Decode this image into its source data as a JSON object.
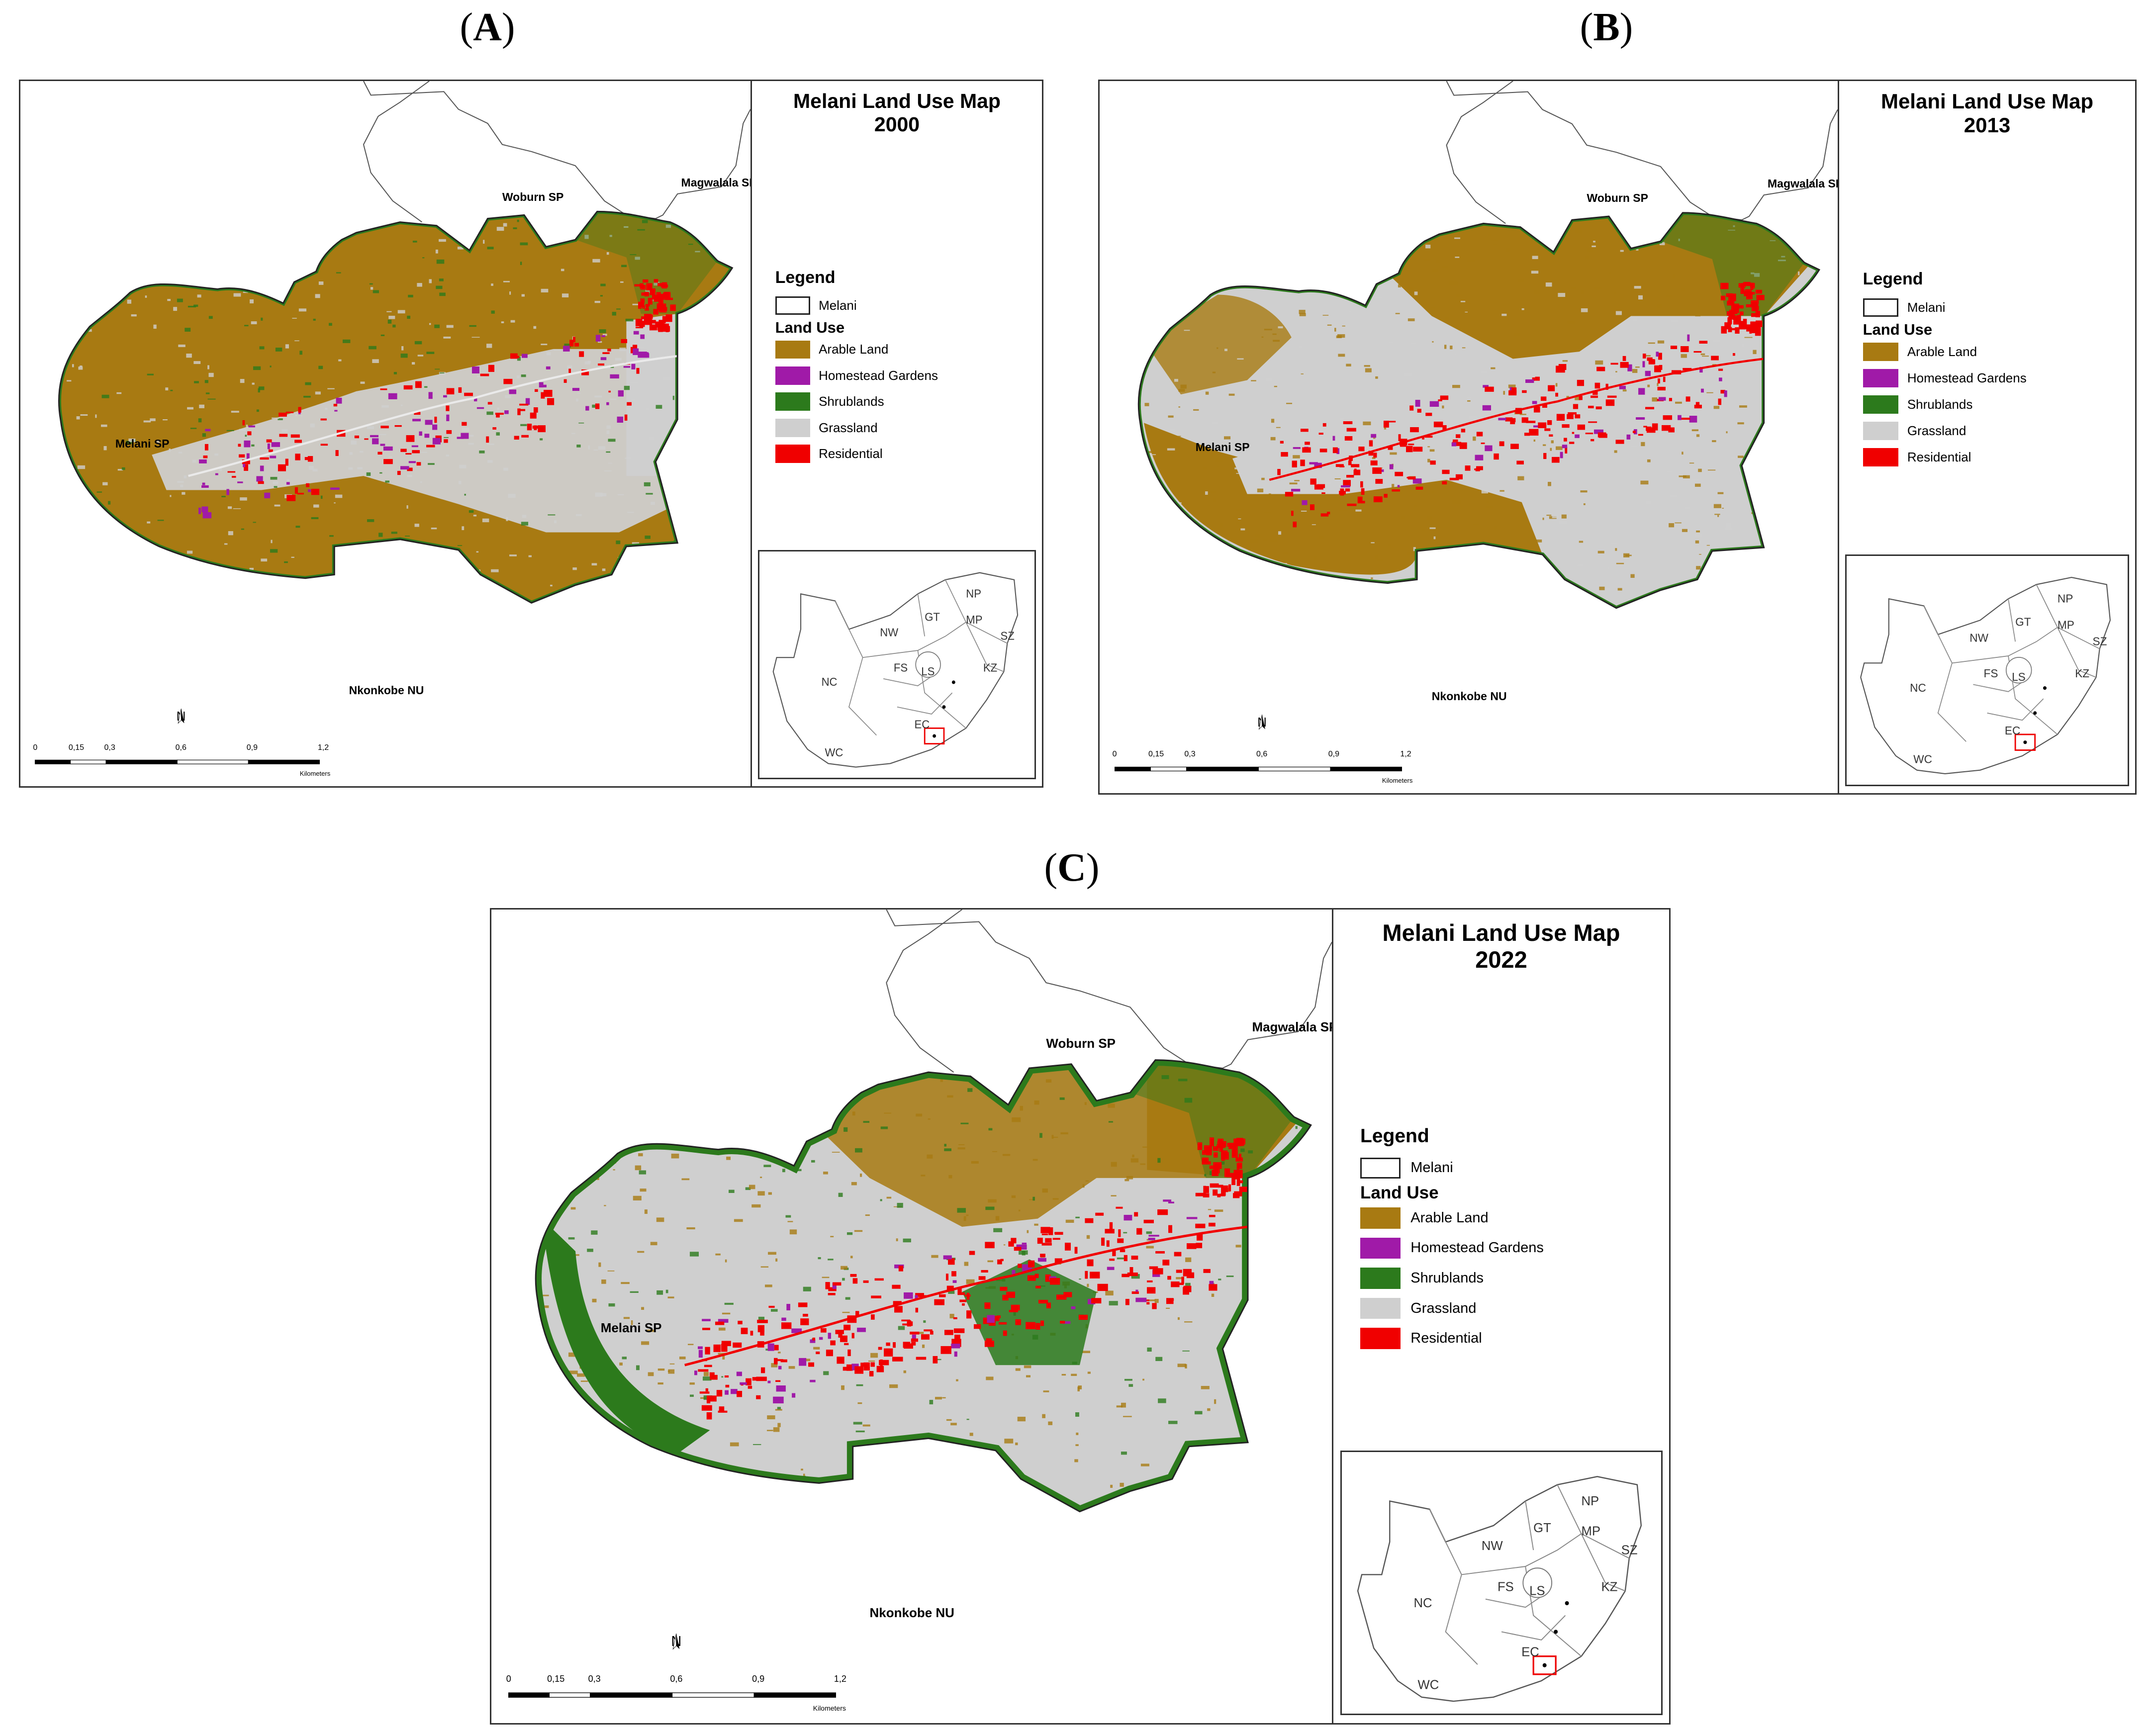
{
  "colors": {
    "arable": "#a87a12",
    "homestead": "#a01aa8",
    "shrub": "#2c7a1c",
    "grass": "#cfcfcf",
    "residential": "#f00000",
    "boundary": "#222222"
  },
  "panels": [
    {
      "letter": "A",
      "title_line1": "Melani Land Use Map",
      "title_line2": "2000",
      "places": {
        "woburn": "Woburn SP",
        "magwalala": "Magwalala SP",
        "melani": "Melani SP",
        "nkonkobe": "Nkonkobe NU"
      },
      "scale_ticks": [
        "0",
        "0,15",
        "0,3",
        "0,6",
        "0,9",
        "1,2"
      ],
      "scale_unit": "Kilometers",
      "north": "N",
      "dominant": "arable"
    },
    {
      "letter": "B",
      "title_line1": "Melani Land Use Map",
      "title_line2": "2013",
      "places": {
        "woburn": "Woburn SP",
        "magwalala": "Magwalala SP",
        "melani": "Melani SP",
        "nkonkobe": "Nkonkobe NU"
      },
      "scale_ticks": [
        "0",
        "0,15",
        "0,3",
        "0,6",
        "0,9",
        "1,2"
      ],
      "scale_unit": "Kilometers",
      "north": "N",
      "dominant": "mixed"
    },
    {
      "letter": "C",
      "title_line1": "Melani Land Use Map",
      "title_line2": "2022",
      "places": {
        "woburn": "Woburn SP",
        "magwalala": "Magwalala SP",
        "melani": "Melani SP",
        "nkonkobe": "Nkonkobe NU"
      },
      "scale_ticks": [
        "0",
        "0,15",
        "0,3",
        "0,6",
        "0,9",
        "1,2"
      ],
      "scale_unit": "Kilometers",
      "north": "N",
      "dominant": "grass"
    }
  ],
  "legend": {
    "heading": "Legend",
    "boundary_label": "Melani",
    "land_use_heading": "Land Use",
    "items": [
      {
        "label": "Arable Land",
        "key": "arable"
      },
      {
        "label": "Homestead Gardens",
        "key": "homestead"
      },
      {
        "label": "Shrublands",
        "key": "shrub"
      },
      {
        "label": "Grassland",
        "key": "grass"
      },
      {
        "label": "Residential",
        "key": "residential"
      }
    ]
  },
  "inset_labels": {
    "np": "NP",
    "gt": "GT",
    "mp": "MP",
    "nw": "NW",
    "sz": "SZ",
    "fs": "FS",
    "kz": "KZ",
    "ls": "LS",
    "nc": "NC",
    "ec": "EC",
    "wc": "WC"
  }
}
